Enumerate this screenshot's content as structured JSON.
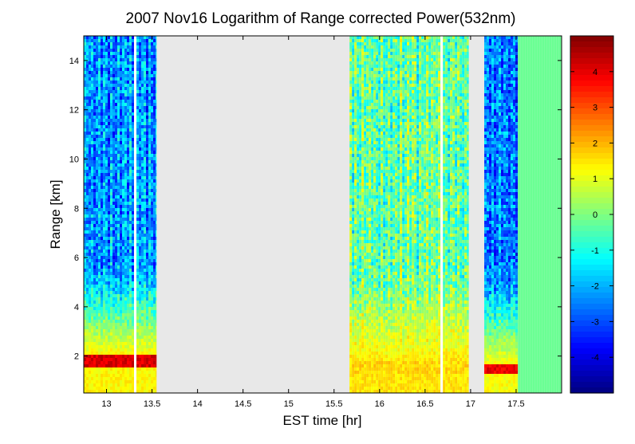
{
  "chart_data": {
    "type": "heatmap",
    "title": "2007 Nov16  Logarithm of Range corrected Power(532nm)",
    "xlabel": "EST time [hr]",
    "ylabel": "Range [km]",
    "xlim": [
      12.75,
      18.0
    ],
    "ylim": [
      0.5,
      15.0
    ],
    "xticks": [
      13,
      13.5,
      14,
      14.5,
      15,
      15.5,
      16,
      16.5,
      17,
      17.5
    ],
    "xtick_labels": [
      "13",
      "13.5",
      "14",
      "14.5",
      "15",
      "15.5",
      "16",
      "16.5",
      "17",
      "17.5"
    ],
    "yticks": [
      2,
      4,
      6,
      8,
      10,
      12,
      14
    ],
    "ytick_labels": [
      "2",
      "4",
      "6",
      "8",
      "10",
      "12",
      "14"
    ],
    "colorbar": {
      "colormap": "jet",
      "clim": [
        -5,
        5
      ],
      "ticks": [
        -4,
        -3,
        -2,
        -1,
        0,
        1,
        2,
        3,
        4
      ],
      "tick_labels": [
        "-4",
        "-3",
        "-2",
        "-1",
        "0",
        "1",
        "2",
        "3",
        "4"
      ]
    },
    "no_data_color": "#e8e8e8",
    "data_segments": [
      {
        "start": 12.75,
        "end": 13.55,
        "surface_value": 1.3,
        "aloft_value": -2.3,
        "layer_top_km": 2.1,
        "layer_value": 4.5
      },
      {
        "start": 15.67,
        "end": 16.98,
        "surface_value": 1.5,
        "aloft_value": -0.3,
        "layer_top_km": 1.8,
        "layer_value": 2.0
      },
      {
        "start": 17.15,
        "end": 17.52,
        "surface_value": 1.2,
        "aloft_value": -2.6,
        "layer_top_km": 1.75,
        "layer_value": 4.3
      },
      {
        "start": 17.52,
        "end": 18.0,
        "surface_value": -0.2,
        "aloft_value": -0.2,
        "layer_top_km": 0,
        "layer_value": -0.2
      }
    ],
    "dropouts_hr": [
      13.31,
      16.66,
      17.0
    ]
  }
}
